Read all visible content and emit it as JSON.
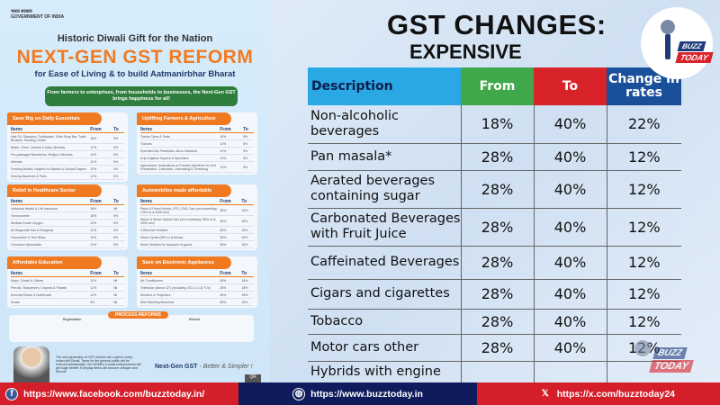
{
  "poster": {
    "government": "भारत सरकार GOVERNMENT OF INDIA",
    "kicker": "Historic Diwali Gift for the Nation",
    "title": "NEXT-GEN GST REFORM",
    "subtitle": "for Ease of Living & to build Aatmanirbhar Bharat",
    "banner": "From farmers to enterprises, from households to businesses, the Next-Gen GST brings happiness for all!",
    "col_items": "Items",
    "col_from": "From",
    "col_to": "To",
    "cards": [
      {
        "title": "Save Big on Daily Essentials",
        "rows": [
          [
            "Hair Oil, Shampoo, Toothpaste, Toilet Soap Bar, Tooth Brushes, Shaving Cream",
            "18%",
            "5%"
          ],
          [
            "Butter, Ghee, Cheese & Dairy Spreads",
            "12%",
            "5%"
          ],
          [
            "Pre-packaged Namkeens, Bhujia & Mixtures",
            "12%",
            "5%"
          ],
          [
            "Utensils",
            "12%",
            "5%"
          ],
          [
            "Feeding Bottles, Napkins for Babies & Clinical Diapers",
            "12%",
            "5%"
          ],
          [
            "Sewing Machines & Parts",
            "12%",
            "5%"
          ]
        ]
      },
      {
        "title": "Uplifting Farmers & Agriculture",
        "rows": [
          [
            "Tractor Tyres & Parts",
            "18%",
            "5%"
          ],
          [
            "Tractors",
            "12%",
            "5%"
          ],
          [
            "Specified Bio-Pesticides, Micro Nutrients",
            "12%",
            "5%"
          ],
          [
            "Drip Irrigation System & Sprinklers",
            "12%",
            "5%"
          ],
          [
            "Agricultural, Horticultural or Forestry Machines for Soil Preparation, Cultivation, Harvesting & Threshing",
            "12%",
            "5%"
          ]
        ]
      },
      {
        "title": "Relief in Healthcare Sector",
        "rows": [
          [
            "Individual Health & Life Insurance",
            "18%",
            "Nil"
          ],
          [
            "Thermometer",
            "18%",
            "5%"
          ],
          [
            "Medical Grade Oxygen",
            "12%",
            "5%"
          ],
          [
            "All Diagnostic Kits & Reagents",
            "12%",
            "5%"
          ],
          [
            "Glucometer & Test Strips",
            "12%",
            "5%"
          ],
          [
            "Corrective Spectacles",
            "12%",
            "5%"
          ]
        ]
      },
      {
        "title": "Automobiles made affordable",
        "rows": [
          [
            "Petrol & Petrol Hybrid, LPG, CNG Cars (not exceeding 1200 cc & 4000 mm)",
            "28%",
            "18%"
          ],
          [
            "Diesel & Diesel Hybrid Cars (not exceeding 1500 cc & 4000 mm)",
            "28%",
            "18%"
          ],
          [
            "3 Wheeled Vehicles",
            "28%",
            "18%"
          ],
          [
            "Motor Cycles (350 cc & below)",
            "28%",
            "18%"
          ],
          [
            "Motor Vehicles for transport of goods",
            "28%",
            "18%"
          ]
        ]
      },
      {
        "title": "Affordable Education",
        "rows": [
          [
            "Maps, Charts & Globes",
            "12%",
            "Nil"
          ],
          [
            "Pencils, Sharpeners, Crayons & Pastels",
            "12%",
            "Nil"
          ],
          [
            "Exercise Books & Notebooks",
            "12%",
            "Nil"
          ],
          [
            "Eraser",
            "5%",
            "Nil"
          ]
        ]
      },
      {
        "title": "Save on Electronic Appliances",
        "rows": [
          [
            "Air Conditioners",
            "28%",
            "18%"
          ],
          [
            "Television (above 32\") (including LED & LCD TVs)",
            "28%",
            "18%"
          ],
          [
            "Monitors & Projectors",
            "28%",
            "18%"
          ],
          [
            "Dish Washing Machines",
            "28%",
            "18%"
          ]
        ]
      }
    ],
    "process_tag": "PROCESS REFORMS",
    "registration": "Registration",
    "refund": "Refund",
    "quote": "The next generation of GST reforms are a gift for every Indian this Diwali. Taxes for the general public will be reduced substantially. Our MSMEs & small entrepreneurs will get huge benefit. Everyday items will become cheaper and this will",
    "tagline": "Next-Gen GST",
    "tagline_rest": " - Better & Simpler !",
    "qr": "QR"
  },
  "heading": "GST CHANGES:",
  "subheading": "EXPENSIVE",
  "table": {
    "headers": [
      "Description",
      "From",
      "To",
      "Change in rates"
    ],
    "colors": {
      "description": "#2aa8e4",
      "from": "#3ea84a",
      "to": "#d8232a",
      "change": "#1a4f99"
    },
    "rows": [
      [
        "Non-alcoholic beverages",
        "18%",
        "40%",
        "22%"
      ],
      [
        "Pan masala*",
        "28%",
        "40%",
        "12%"
      ],
      [
        "Aerated beverages containing sugar",
        "28%",
        "40%",
        "12%"
      ],
      [
        "Carbonated Beverages with Fruit Juice",
        "28%",
        "40%",
        "12%"
      ],
      [
        "Caffeinated Beverages",
        "28%",
        "40%",
        "12%"
      ],
      [
        "Cigars and cigarettes",
        "28%",
        "40%",
        "12%"
      ],
      [
        "Tobacco",
        "28%",
        "40%",
        "12%"
      ],
      [
        "Motor cars other",
        "28%",
        "40%",
        "12%"
      ],
      [
        "Hybrids with engine",
        "",
        "",
        ""
      ]
    ]
  },
  "logo": {
    "line1": "BUZZ",
    "line2": "TODAY"
  },
  "footer": {
    "facebook": "https://www.facebook.com/buzztoday.in/",
    "website": "https://www.buzztoday.in",
    "x": "https://x.com/buzztoday24"
  }
}
